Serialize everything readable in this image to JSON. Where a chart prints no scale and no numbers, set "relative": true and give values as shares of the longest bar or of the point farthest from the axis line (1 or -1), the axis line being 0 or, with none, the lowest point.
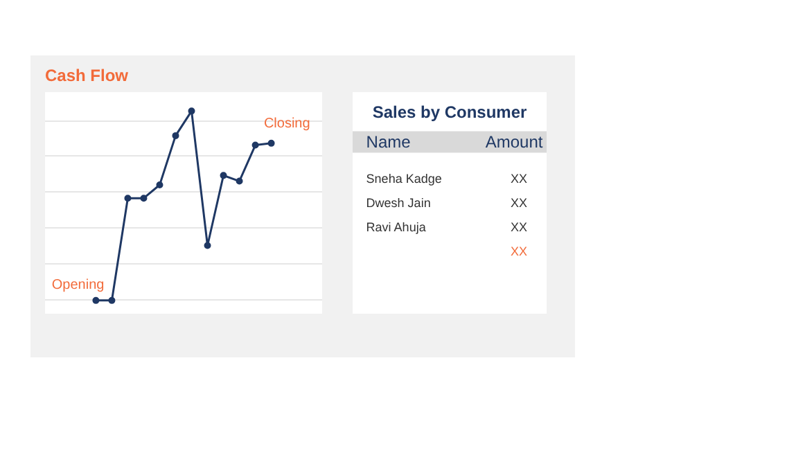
{
  "chart_data": [
    {
      "type": "line",
      "title": "Cash Flow",
      "relative": true,
      "categories": [
        null,
        null,
        null,
        null,
        null,
        null,
        null,
        null,
        null,
        null,
        null,
        null
      ],
      "series": [
        {
          "color": "#1f3864",
          "values": [
            0,
            0,
            0.54,
            0.54,
            0.61,
            0.87,
            1,
            0.29,
            0.66,
            0.63,
            0.82,
            0.83
          ]
        }
      ],
      "marker": "circle",
      "line_style": "solid",
      "grid": "y",
      "tick_labels": false,
      "annotations": [
        "Opening",
        "Closing"
      ]
    },
    {
      "type": "other",
      "title": "Sales by Consumer",
      "annotations": [
        "Name",
        "Amount",
        "Sneha Kadge",
        "XX",
        "Dwesh Jain",
        "XX",
        "Ravi Ahuja",
        "XX",
        "XX"
      ]
    }
  ]
}
